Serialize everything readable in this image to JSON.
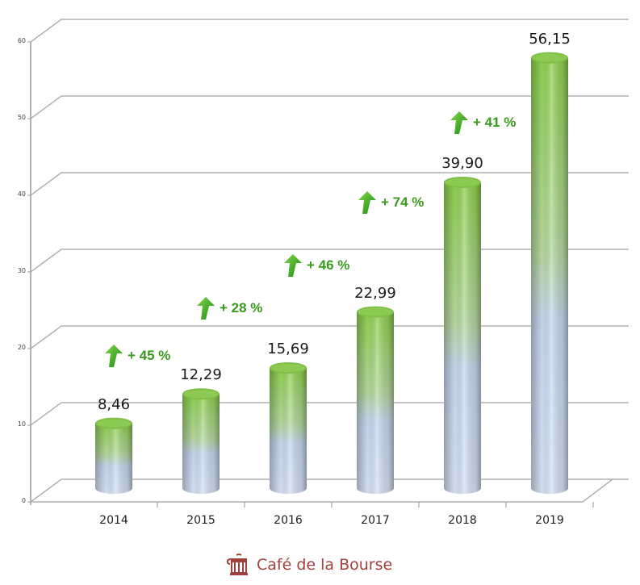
{
  "chart_data": {
    "type": "bar",
    "style": "3d-cylinder",
    "title": "",
    "xlabel": "",
    "ylabel": "",
    "categories": [
      "2014",
      "2015",
      "2016",
      "2017",
      "2018",
      "2019"
    ],
    "values": [
      8.46,
      12.29,
      15.69,
      22.99,
      39.9,
      56.15
    ],
    "value_labels": [
      "8,46",
      "12,29",
      "15,69",
      "22,99",
      "39,90",
      "56,15"
    ],
    "ylim": [
      0,
      60
    ],
    "yticks": [
      "0",
      "10",
      "20",
      "30",
      "40",
      "50",
      "60"
    ],
    "grid": true,
    "legend": null,
    "annotations": [
      {
        "between": [
          "2014",
          "2015"
        ],
        "text": "+ 45 %",
        "icon": "up-arrow-icon"
      },
      {
        "between": [
          "2015",
          "2016"
        ],
        "text": "+ 28 %",
        "icon": "up-arrow-icon"
      },
      {
        "between": [
          "2016",
          "2017"
        ],
        "text": "+ 46 %",
        "icon": "up-arrow-icon"
      },
      {
        "between": [
          "2017",
          "2018"
        ],
        "text": "+ 74 %",
        "icon": "up-arrow-icon"
      },
      {
        "between": [
          "2018",
          "2019"
        ],
        "text": "+ 41 %",
        "icon": "up-arrow-icon"
      }
    ],
    "colors": {
      "bar_top": "#8fd14f",
      "bar_bottom": "#c9d8f2",
      "growth_text": "#3a9a1e",
      "grid": "#b0b0b0"
    }
  },
  "branding": {
    "name": "Café de la Bourse",
    "icon": "cafe-logo-icon",
    "color": "#a0413d"
  }
}
